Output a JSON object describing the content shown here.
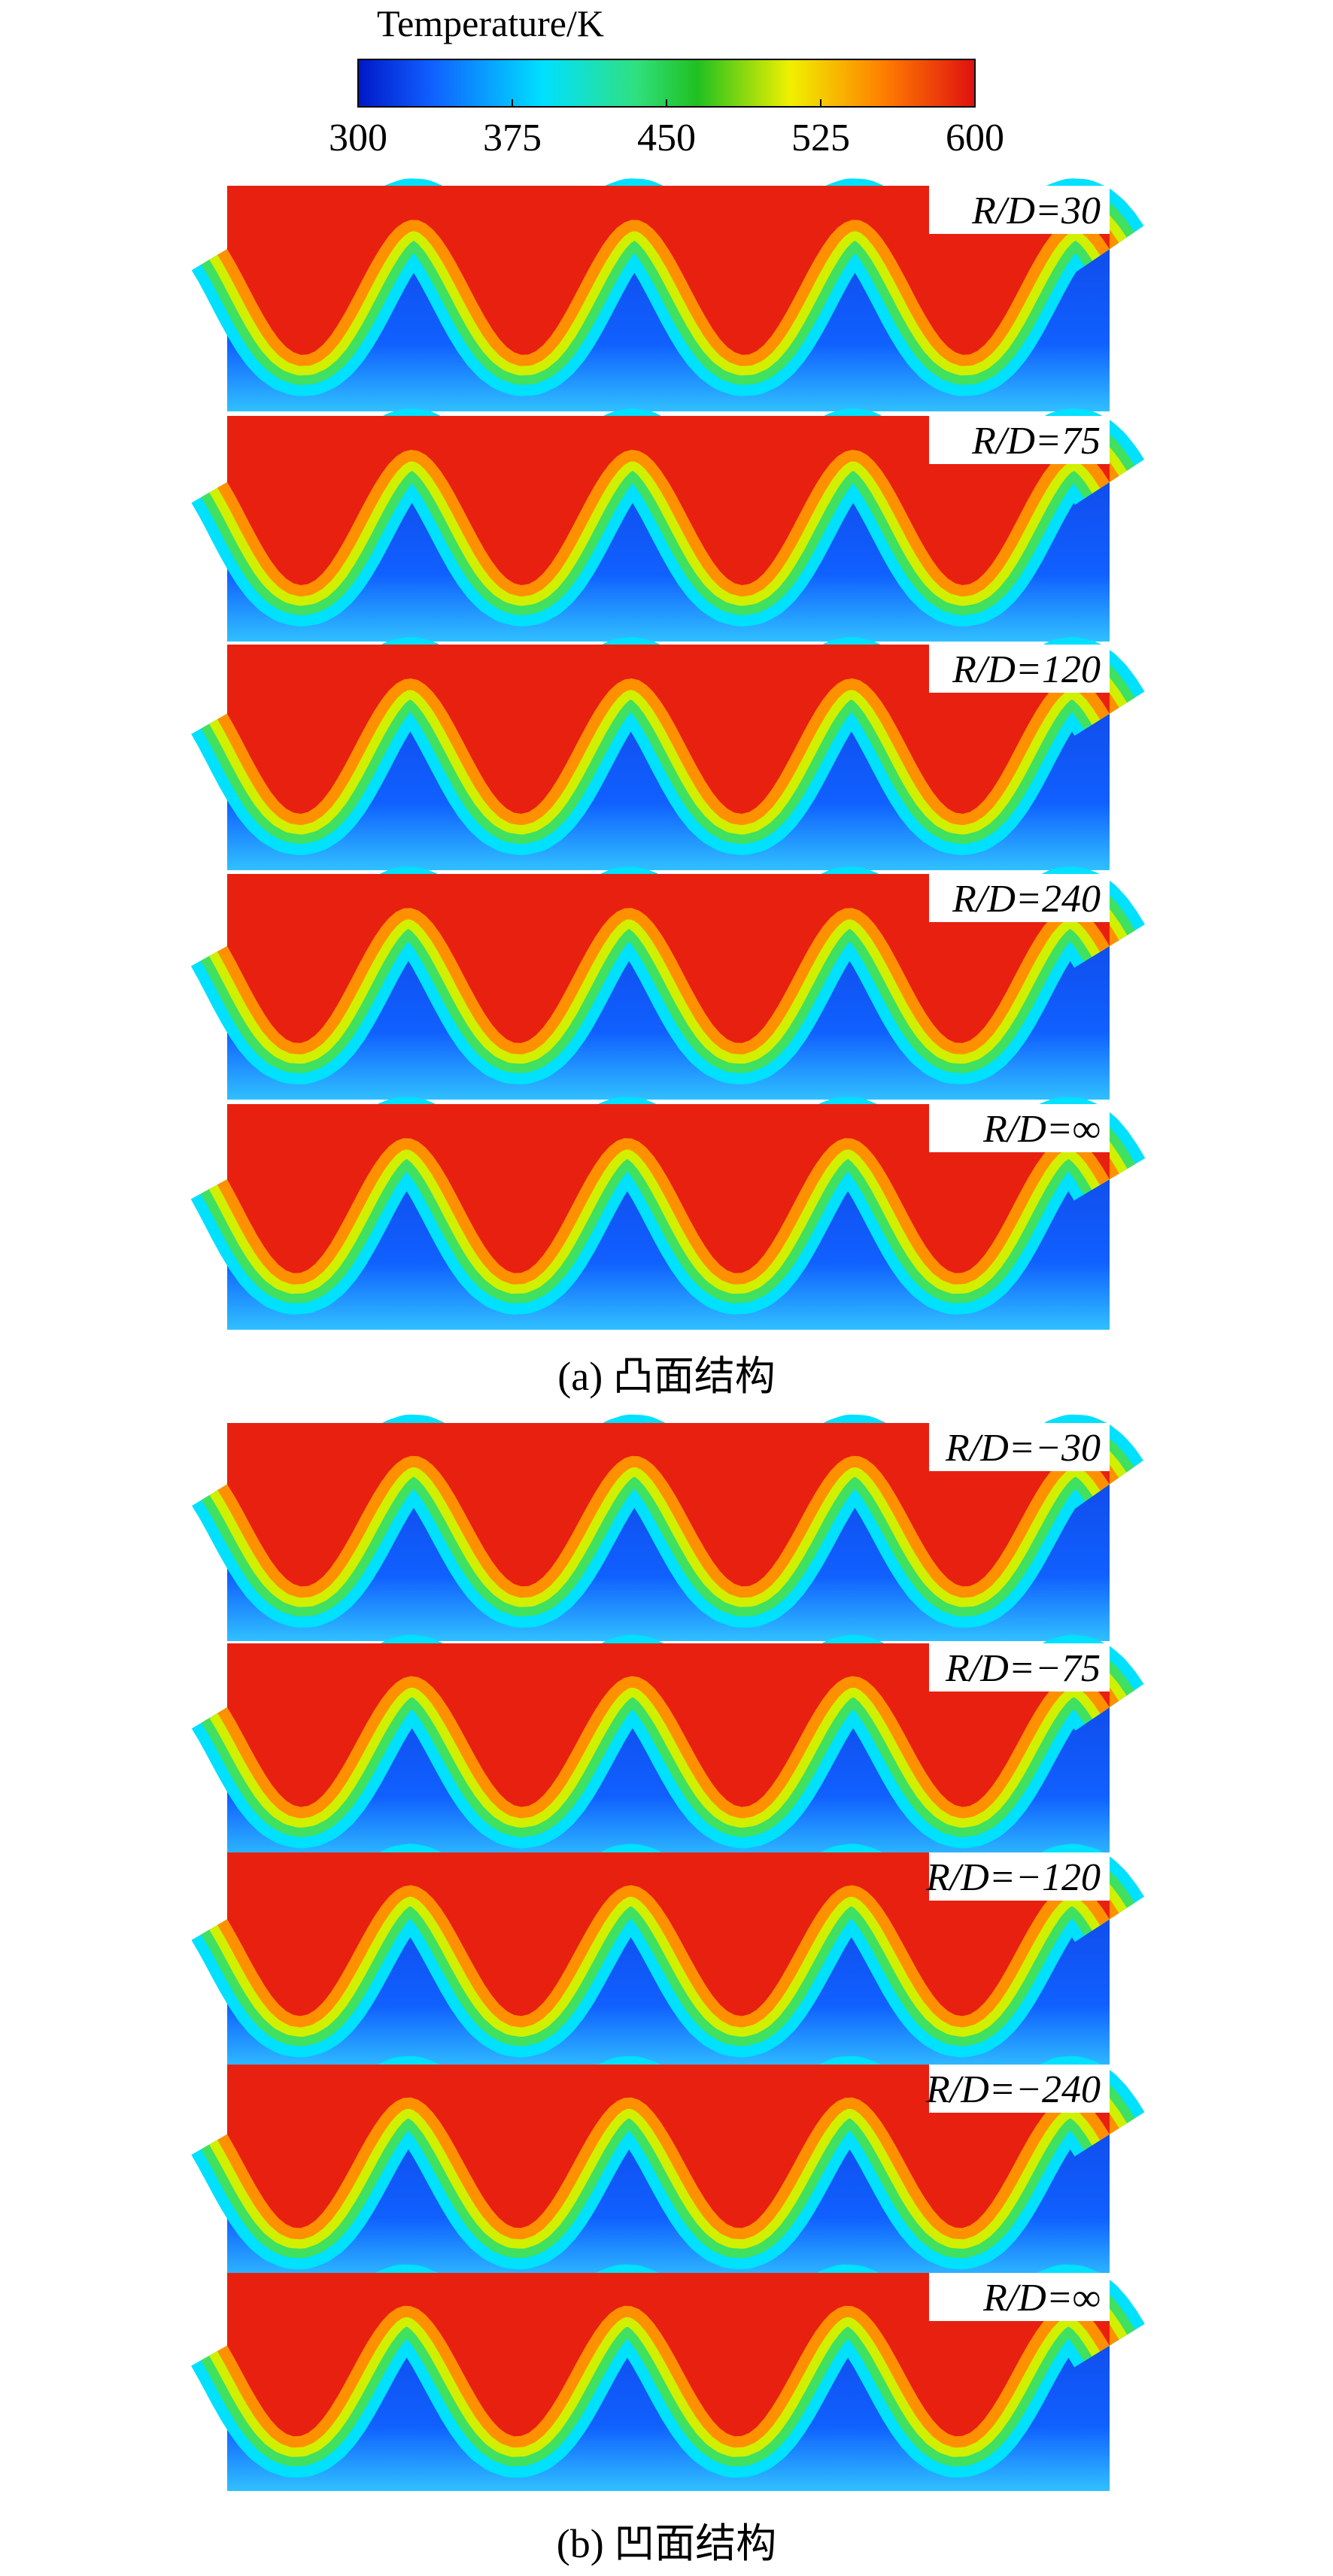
{
  "colorbar": {
    "title": "Temperature/K",
    "lim": [
      300,
      600
    ],
    "ticks": [
      300,
      375,
      450,
      525,
      600
    ]
  },
  "groups": [
    {
      "caption": "(a) 凸面结构",
      "panels": [
        "R/D=30",
        "R/D=75",
        "R/D=120",
        "R/D=240",
        "R/D=∞"
      ]
    },
    {
      "caption": "(b) 凹面结构",
      "panels": [
        "R/D=−30",
        "R/D=−75",
        "R/D=−120",
        "R/D=−240",
        "R/D=∞"
      ]
    }
  ]
}
